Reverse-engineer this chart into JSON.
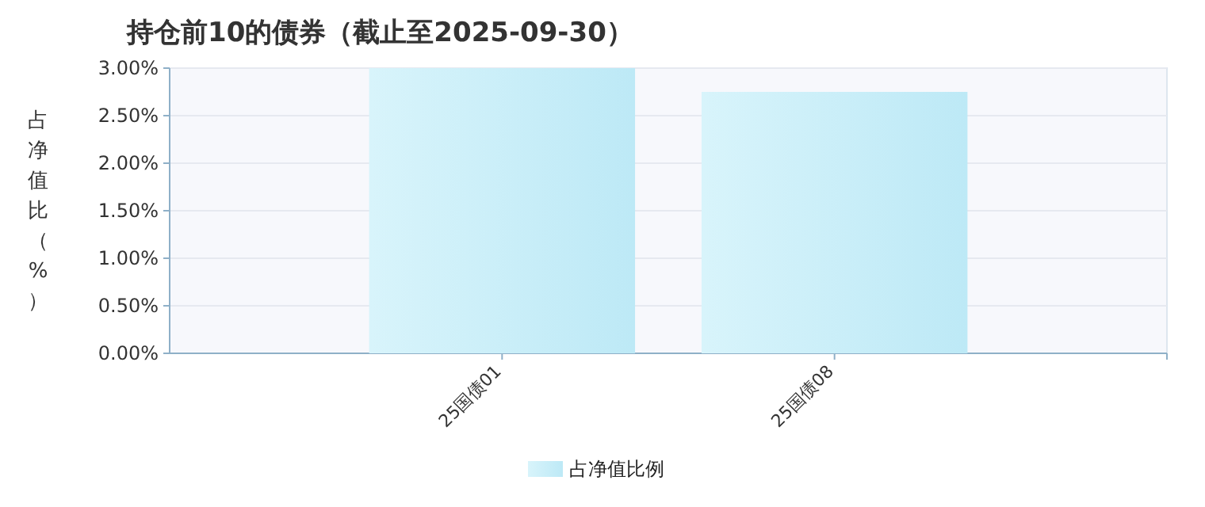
{
  "chart_data": {
    "type": "bar",
    "title": "持仓前10的债券（截止至2025-09-30）",
    "ylabel": "占净值比（%）",
    "categories": [
      "25国债01",
      "25国债08"
    ],
    "series": [
      {
        "name": "占净值比例",
        "color": "#bde9f6",
        "values": [
          3.0,
          2.75
        ]
      }
    ],
    "ylim": [
      0,
      3
    ],
    "yticks": [
      {
        "value": 0,
        "label": "0.00%"
      },
      {
        "value": 0.5,
        "label": "0.50%"
      },
      {
        "value": 1,
        "label": "1.00%"
      },
      {
        "value": 1.5,
        "label": "1.50%"
      },
      {
        "value": 2,
        "label": "2.00%"
      },
      {
        "value": 2.5,
        "label": "2.50%"
      },
      {
        "value": 3,
        "label": "3.00%"
      }
    ],
    "grid": "y",
    "legend": "bottom"
  }
}
